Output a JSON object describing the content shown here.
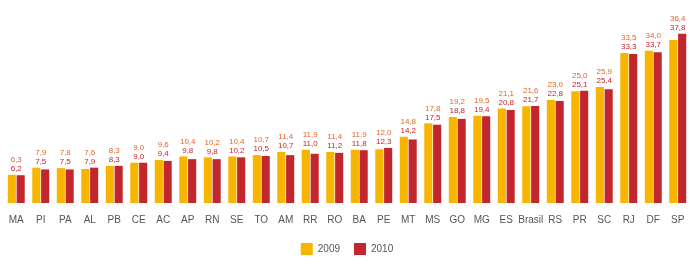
{
  "chart_data": {
    "type": "bar",
    "categories": [
      "MA",
      "PI",
      "PA",
      "AL",
      "PB",
      "CE",
      "AC",
      "AP",
      "RN",
      "SE",
      "TO",
      "AM",
      "RR",
      "RO",
      "BA",
      "PE",
      "MT",
      "MS",
      "GO",
      "MG",
      "ES",
      "Brasil",
      "RS",
      "PR",
      "SC",
      "RJ",
      "DF",
      "SP"
    ],
    "series": [
      {
        "name": "2009",
        "color": "#f7b500",
        "values": [
          6.3,
          7.9,
          7.8,
          7.6,
          8.3,
          9.0,
          9.6,
          10.4,
          10.2,
          10.4,
          10.7,
          11.4,
          11.9,
          11.4,
          11.9,
          12.0,
          14.8,
          17.8,
          19.2,
          19.5,
          21.1,
          21.6,
          23.0,
          25.0,
          25.9,
          33.5,
          34.0,
          36.4
        ],
        "value_labels": [
          "6,3",
          "7,9",
          "7,8",
          "7,6",
          "8,3",
          "9,0",
          "9,6",
          "10,4",
          "10,2",
          "10,4",
          "10,7",
          "11,4",
          "11,9",
          "11,4",
          "11,9",
          "12,0",
          "14,8",
          "17,8",
          "19,2",
          "19,5",
          "21,1",
          "21,6",
          "23,0",
          "25,0",
          "25,9",
          "33,5",
          "34,0",
          "36,4"
        ]
      },
      {
        "name": "2010",
        "color": "#c1272d",
        "values": [
          6.2,
          7.5,
          7.5,
          7.9,
          8.3,
          9.0,
          9.4,
          9.8,
          9.8,
          10.2,
          10.5,
          10.7,
          11.0,
          11.2,
          11.8,
          12.3,
          14.2,
          17.5,
          18.8,
          19.4,
          20.8,
          21.7,
          22.8,
          25.1,
          25.4,
          33.3,
          33.7,
          37.8
        ],
        "value_labels": [
          "6,2",
          "7,5",
          "7,5",
          "7,9",
          "8,3",
          "9,0",
          "9,4",
          "9,8",
          "9,8",
          "10,2",
          "10,5",
          "10,7",
          "11,0",
          "11,2",
          "11,8",
          "12,3",
          "14,2",
          "17,5",
          "18,8",
          "19,4",
          "20,8",
          "21,7",
          "22,8",
          "25,1",
          "25,4",
          "33,3",
          "33,7",
          "37,8"
        ]
      }
    ],
    "ylim": [
      0,
      40
    ],
    "grid": false,
    "legend": "bottom",
    "data_labels": true,
    "tick_labels": "x"
  }
}
